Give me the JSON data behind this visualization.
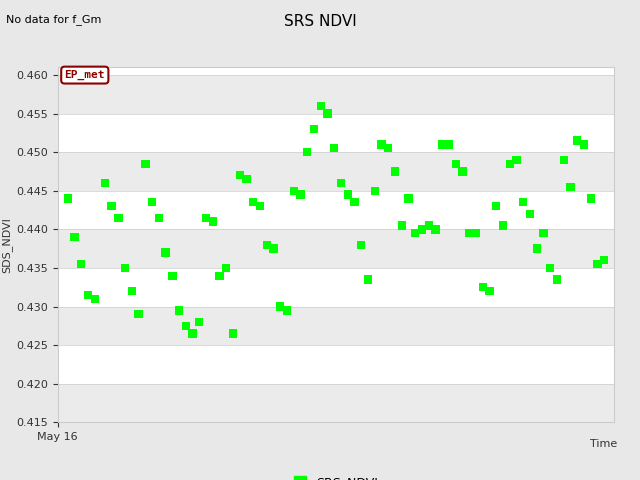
{
  "title": "SRS NDVI",
  "ylabel": "SDS_NDVI",
  "xlabel": "Time",
  "no_data_text": "No data for f_Gm",
  "ep_met_label": "EP_met",
  "legend_label": "SRS_NDVI",
  "ylim": [
    0.415,
    0.461
  ],
  "yticks": [
    0.415,
    0.42,
    0.425,
    0.43,
    0.435,
    0.44,
    0.445,
    0.45,
    0.455,
    0.46
  ],
  "x_start_label": "May 16",
  "marker_color": "#00FF00",
  "marker_size": 36,
  "bg_color": "#E8E8E8",
  "plot_bg_color": "#FFFFFF",
  "band_light": "#EBEBEB",
  "band_dark": "#D8D8D8",
  "scatter_x": [
    0.03,
    0.05,
    0.07,
    0.09,
    0.11,
    0.14,
    0.16,
    0.18,
    0.2,
    0.22,
    0.24,
    0.26,
    0.28,
    0.3,
    0.32,
    0.34,
    0.36,
    0.38,
    0.4,
    0.42,
    0.44,
    0.46,
    0.48,
    0.5,
    0.52,
    0.54,
    0.56,
    0.58,
    0.6,
    0.62,
    0.64,
    0.66,
    0.68,
    0.7,
    0.72,
    0.74,
    0.76,
    0.78,
    0.8,
    0.82,
    0.84,
    0.86,
    0.88,
    0.9,
    0.92,
    0.94,
    0.96,
    0.98,
    1.0,
    1.02,
    1.04,
    1.06,
    1.08,
    1.1,
    1.12,
    1.14,
    1.16,
    1.18,
    1.2,
    1.22,
    1.24,
    1.26,
    1.28,
    1.3,
    1.32,
    1.34,
    1.36,
    1.38,
    1.4,
    1.42,
    1.44,
    1.46,
    1.48,
    1.5,
    1.52,
    1.54,
    1.56,
    1.58,
    1.6,
    1.62
  ],
  "scatter_y": [
    0.444,
    0.439,
    0.4355,
    0.4315,
    0.431,
    0.446,
    0.443,
    0.4415,
    0.435,
    0.432,
    0.429,
    0.4485,
    0.4435,
    0.4415,
    0.437,
    0.434,
    0.4295,
    0.4275,
    0.4265,
    0.428,
    0.4415,
    0.441,
    0.434,
    0.435,
    0.4265,
    0.447,
    0.4465,
    0.4435,
    0.443,
    0.438,
    0.4375,
    0.43,
    0.4295,
    0.445,
    0.4445,
    0.45,
    0.453,
    0.456,
    0.455,
    0.4505,
    0.446,
    0.4445,
    0.4435,
    0.438,
    0.4335,
    0.445,
    0.451,
    0.4505,
    0.4475,
    0.4405,
    0.444,
    0.4395,
    0.44,
    0.4405,
    0.44,
    0.451,
    0.451,
    0.4485,
    0.4475,
    0.4395,
    0.4395,
    0.4325,
    0.432,
    0.443,
    0.4405,
    0.4485,
    0.449,
    0.4435,
    0.442,
    0.4375,
    0.4395,
    0.435,
    0.4335,
    0.449,
    0.4455,
    0.4515,
    0.451,
    0.444,
    0.4355,
    0.436
  ]
}
